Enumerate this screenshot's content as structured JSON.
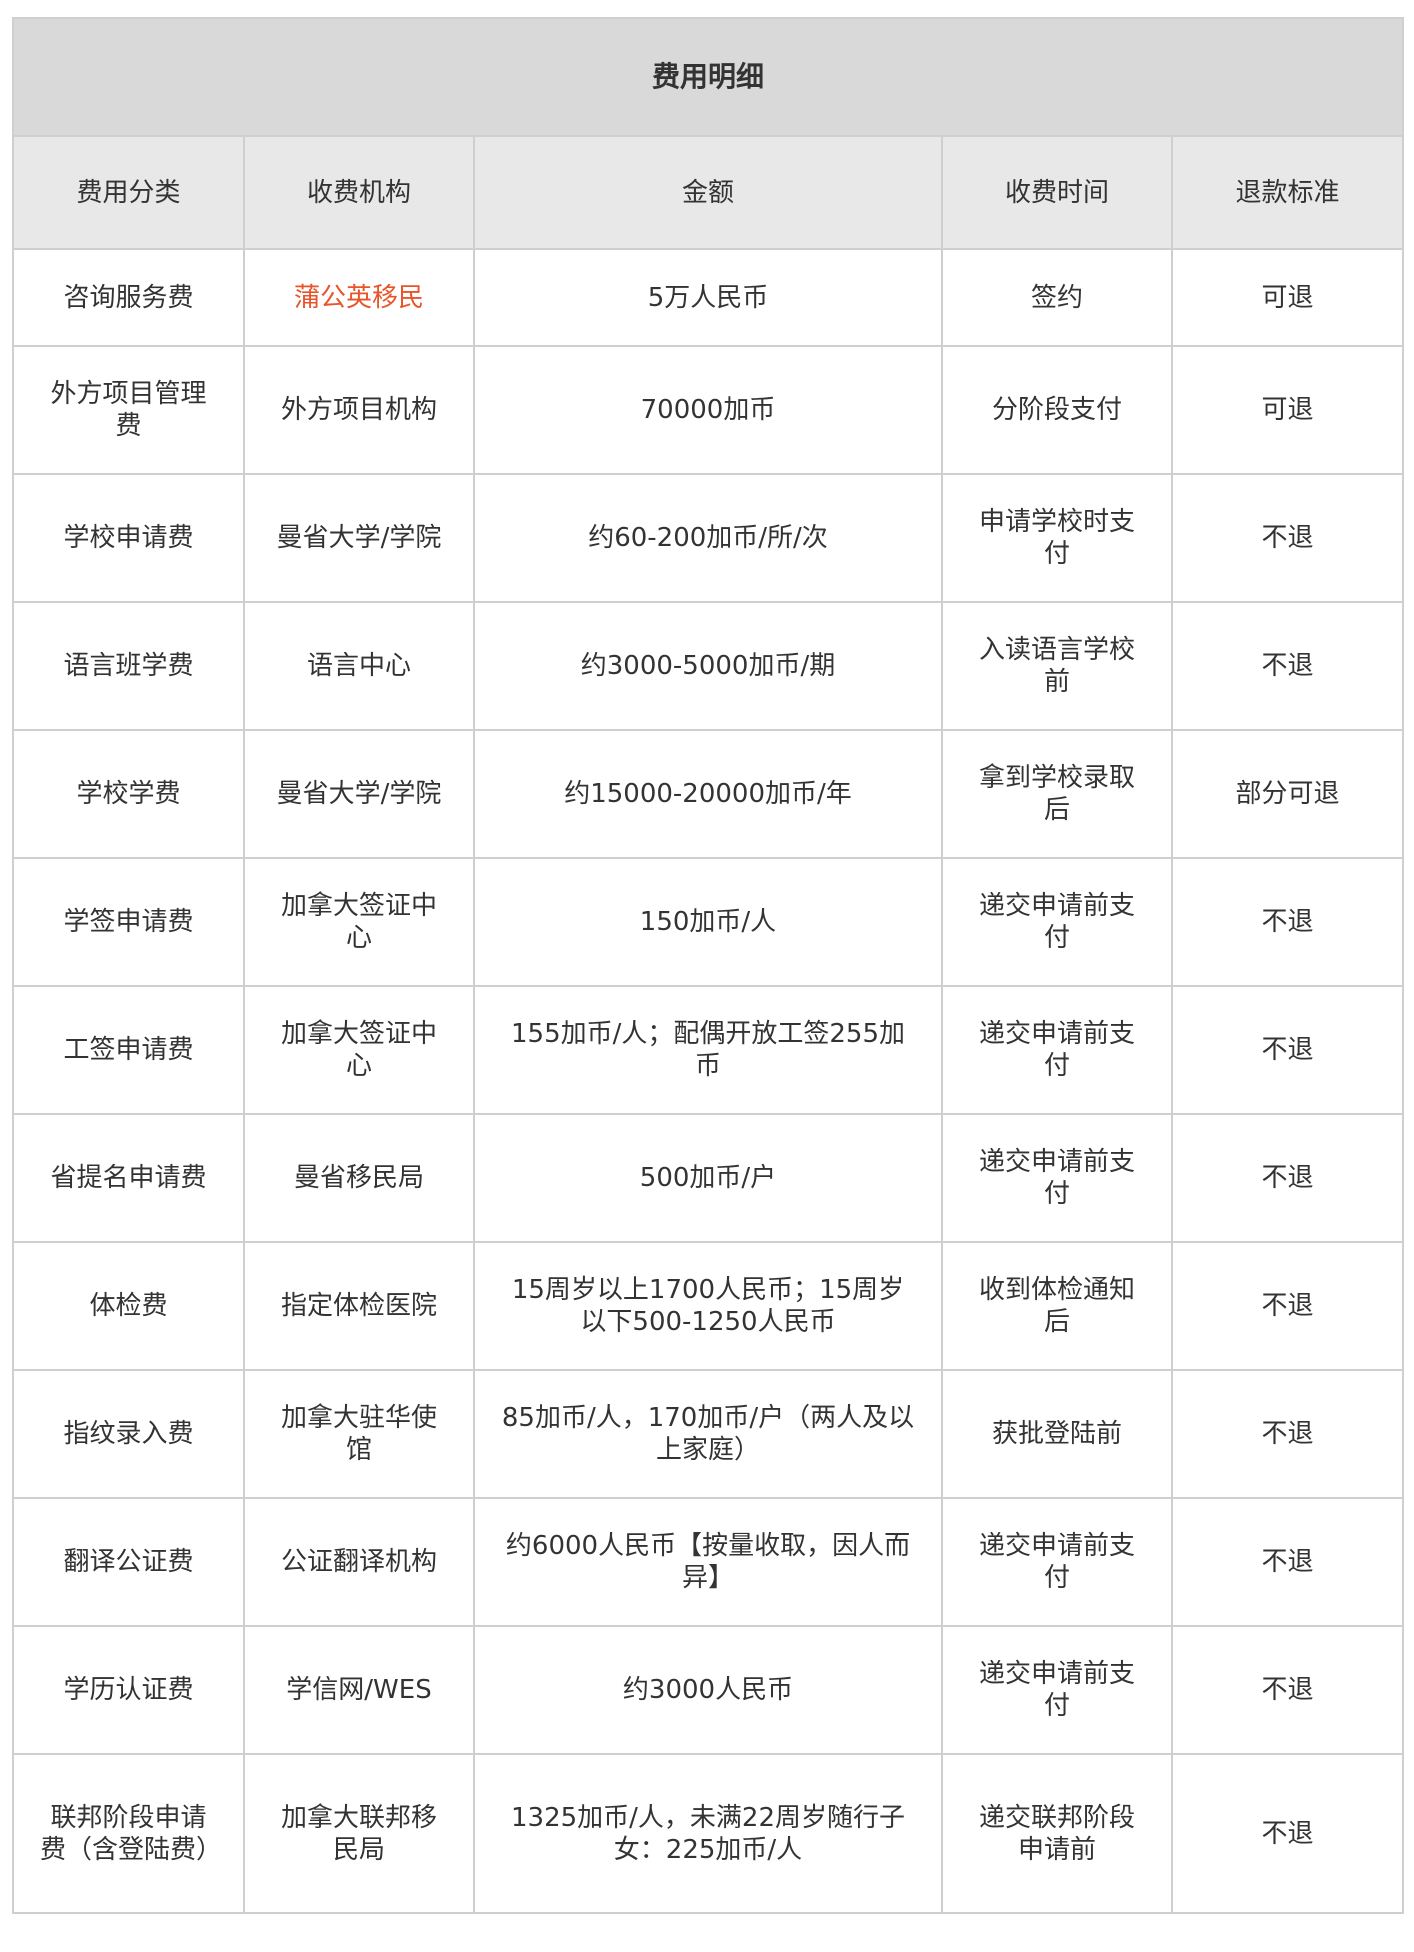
{
  "title": "费用明细",
  "accent_color": "#e8552a",
  "headers": [
    "费用分类",
    "收费机构",
    "金额",
    "收费时间",
    "退款标准"
  ],
  "rows": [
    [
      "咨询服务费",
      "蒲公英移民",
      "5万人民币",
      "签约",
      "可退"
    ],
    [
      "外方项目管理费",
      "外方项目机构",
      "70000加币",
      "分阶段支付",
      "可退"
    ],
    [
      "学校申请费",
      "曼省大学/学院",
      "约60-200加币/所/次",
      "申请学校时支付",
      "不退"
    ],
    [
      "语言班学费",
      "语言中心",
      "约3000-5000加币/期",
      "入读语言学校前",
      "不退"
    ],
    [
      "学校学费",
      "曼省大学/学院",
      "约15000-20000加币/年",
      "拿到学校录取后",
      "部分可退"
    ],
    [
      "学签申请费",
      "加拿大签证中心",
      "150加币/人",
      "递交申请前支付",
      "不退"
    ],
    [
      "工签申请费",
      "加拿大签证中心",
      "155加币/人；配偶开放工签255加币",
      "递交申请前支付",
      "不退"
    ],
    [
      "省提名申请费",
      "曼省移民局",
      "500加币/户",
      "递交申请前支付",
      "不退"
    ],
    [
      "体检费",
      "指定体检医院",
      "15周岁以上1700人民币；15周岁以下500-1250人民币",
      "收到体检通知后",
      "不退"
    ],
    [
      "指纹录入费",
      "加拿大驻华使馆",
      "85加币/人，170加币/户（两人及以上家庭）",
      "获批登陆前",
      "不退"
    ],
    [
      "翻译公证费",
      "公证翻译机构",
      "约6000人民币【按量收取，因人而异】",
      "递交申请前支付",
      "不退"
    ],
    [
      "学历认证费",
      "学信网/WES",
      "约3000人民币",
      "递交申请前支付",
      "不退"
    ],
    [
      "联邦阶段申请费（含登陆费）",
      "加拿大联邦移民局",
      "1325加币/人，未满22周岁随行子女：225加币/人",
      "递交联邦阶段申请前",
      "不退"
    ]
  ]
}
